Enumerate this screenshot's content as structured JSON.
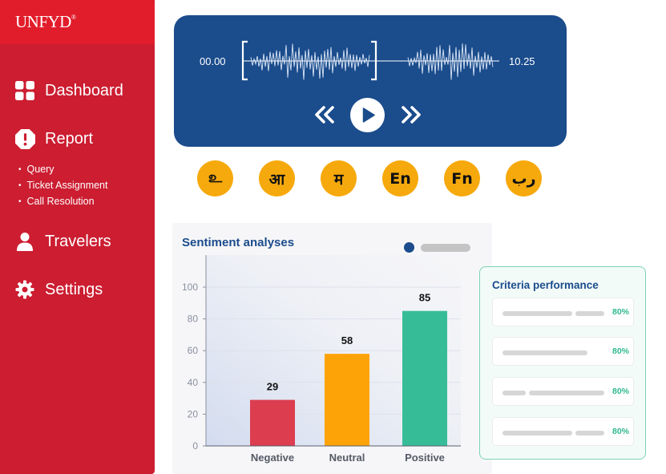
{
  "brand": {
    "name": "UNFYD",
    "mark": "®"
  },
  "sidebar": {
    "items": [
      {
        "label": "Dashboard",
        "icon": "grid-icon"
      },
      {
        "label": "Report",
        "icon": "alert-icon"
      },
      {
        "label": "Travelers",
        "icon": "user-icon"
      },
      {
        "label": "Settings",
        "icon": "gear-icon"
      }
    ],
    "report_subitems": [
      "Query",
      "Ticket Assignment",
      "Call Resolution"
    ]
  },
  "player": {
    "start_time": "00.00",
    "end_time": "10.25",
    "controls": [
      "rewind-icon",
      "play-icon",
      "fast-forward-icon"
    ]
  },
  "languages": [
    "உ",
    "आ",
    "म",
    "En",
    "Fn",
    "رب"
  ],
  "sentiment": {
    "title": "Sentiment analyses",
    "chart_data": {
      "type": "bar",
      "categories": [
        "Negative",
        "Neutral",
        "Positive"
      ],
      "values": [
        29,
        58,
        85
      ],
      "colors": [
        "#dc3d4f",
        "#fea307",
        "#36bd98"
      ],
      "y_ticks": [
        0,
        20,
        40,
        60,
        80,
        100
      ],
      "ylim": [
        0,
        100
      ],
      "title": "Sentiment analyses"
    }
  },
  "criteria": {
    "title": "Criteria performance",
    "rows": [
      {
        "value": "80%"
      },
      {
        "value": "80%"
      },
      {
        "value": "80%"
      },
      {
        "value": "80%"
      }
    ]
  },
  "colors": {
    "sidebar": "#cc1d31",
    "player": "#1b4c8c",
    "accent": "#f6a90c",
    "positive": "#36bd98"
  }
}
